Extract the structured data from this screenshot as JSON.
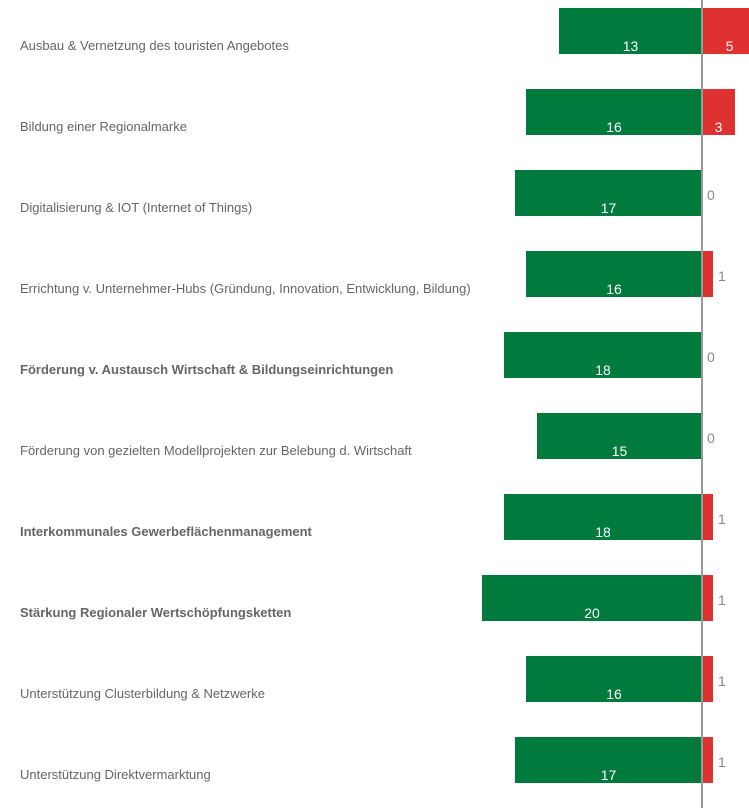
{
  "chart_data": {
    "type": "diverging_bar",
    "categories": [
      "Ausbau & Vernetzung des touristen Angebotes",
      "Bildung einer Regionalmarke",
      "Digitalisierung & IOT (Internet of Things)",
      "Errichtung v. Unternehmer-Hubs (Gründung, Innovation, Entwicklung, Bildung)",
      "Förderung v. Austausch Wirtschaft & Bildungseinrichtungen",
      "Förderung von gezielten Modellprojekten zur Belebung d. Wirtschaft",
      "Interkommunales Gewerbeflächenmanagement",
      "Stärkung Regionaler Wertschöpfungsketten",
      "Unterstützung Clusterbildung & Netzwerke",
      "Unterstützung Direktvermarktung"
    ],
    "emphasis": [
      false,
      false,
      false,
      false,
      true,
      false,
      true,
      true,
      false,
      false
    ],
    "series": [
      {
        "color": "#007a3d",
        "values": [
          13,
          16,
          17,
          16,
          18,
          15,
          18,
          20,
          16,
          17
        ]
      },
      {
        "color": "#e03131",
        "values": [
          5,
          3,
          0,
          1,
          0,
          0,
          1,
          1,
          1,
          1
        ]
      }
    ]
  }
}
